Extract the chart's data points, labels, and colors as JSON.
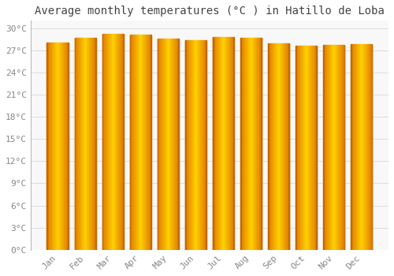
{
  "title": "Average monthly temperatures (°C ) in Hatillo de Loba",
  "months": [
    "Jan",
    "Feb",
    "Mar",
    "Apr",
    "May",
    "Jun",
    "Jul",
    "Aug",
    "Sep",
    "Oct",
    "Nov",
    "Dec"
  ],
  "temperatures": [
    28.0,
    28.7,
    29.2,
    29.1,
    28.6,
    28.4,
    28.8,
    28.7,
    27.9,
    27.6,
    27.7,
    27.8
  ],
  "bar_color_left": "#E07800",
  "bar_color_center": "#FFD040",
  "bar_color_right": "#D06000",
  "background_color": "#FFFFFF",
  "plot_bg_color": "#F8F8F8",
  "grid_color": "#DDDDDD",
  "ylim": [
    0,
    31
  ],
  "yticks": [
    0,
    3,
    6,
    9,
    12,
    15,
    18,
    21,
    24,
    27,
    30
  ],
  "title_fontsize": 10,
  "tick_fontsize": 8,
  "tick_color": "#888888",
  "title_color": "#444444",
  "bar_width": 0.78
}
